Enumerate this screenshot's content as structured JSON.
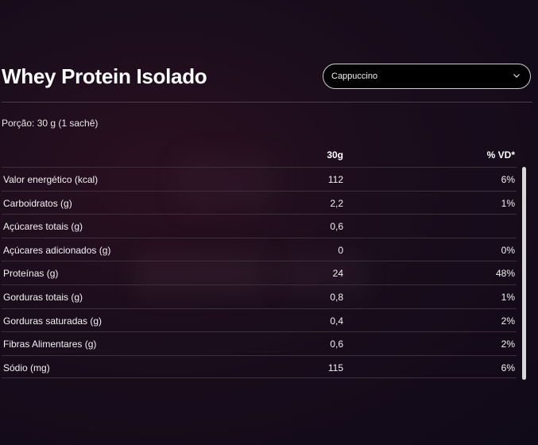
{
  "product": {
    "title": "Whey Protein Isolado",
    "flavor_selected": "Cappuccino"
  },
  "portion": "Porção: 30 g (1 sachê)",
  "table": {
    "headers": [
      "",
      "30g",
      "% VD*"
    ],
    "rows": [
      {
        "label": "Valor energético (kcal)",
        "amount": "112",
        "dv": "6%"
      },
      {
        "label": "Carboidratos (g)",
        "amount": "2,2",
        "dv": "1%"
      },
      {
        "label": "Açúcares totais (g)",
        "amount": "0,6",
        "dv": ""
      },
      {
        "label": "Açúcares adicionados (g)",
        "amount": "0",
        "dv": "0%"
      },
      {
        "label": "Proteínas (g)",
        "amount": "24",
        "dv": "48%"
      },
      {
        "label": "Gorduras totais (g)",
        "amount": "0,8",
        "dv": "1%"
      },
      {
        "label": "Gorduras saturadas (g)",
        "amount": "0,4",
        "dv": "2%"
      },
      {
        "label": "Fibras Alimentares (g)",
        "amount": "0,6",
        "dv": "2%"
      },
      {
        "label": "Sódio (mg)",
        "amount": "115",
        "dv": "6%"
      }
    ]
  },
  "icons": {
    "select_chevron": "chevron-down-icon"
  }
}
